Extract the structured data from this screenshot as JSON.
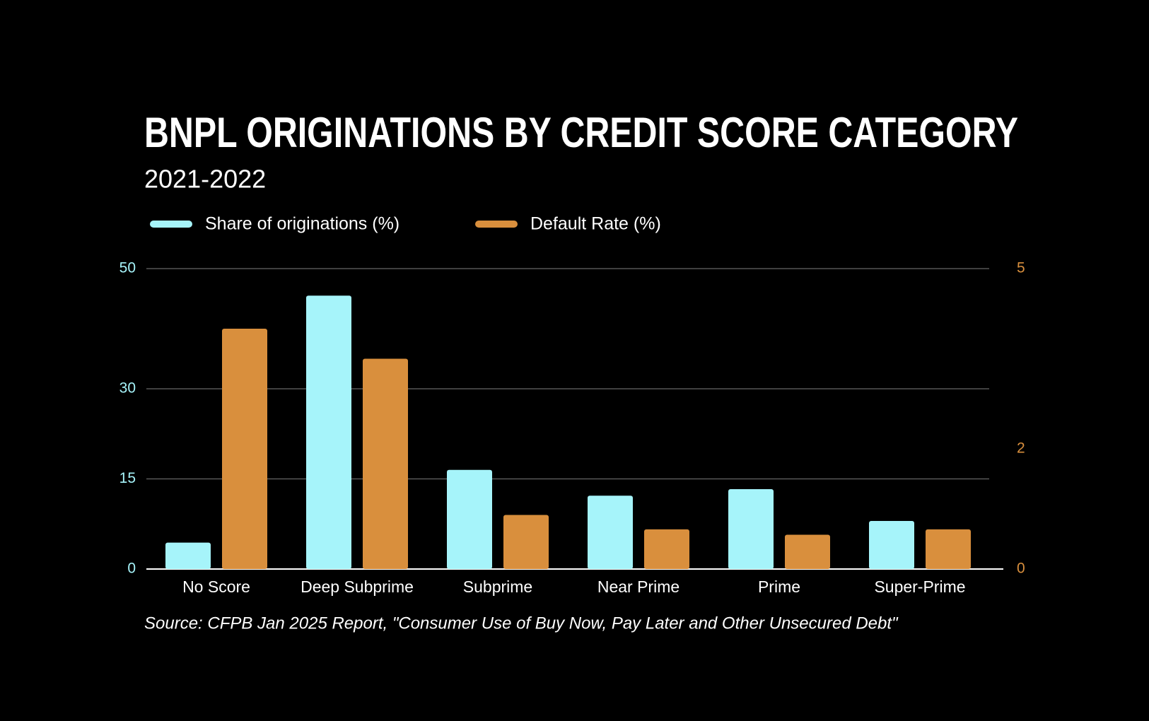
{
  "chart_data": {
    "type": "bar",
    "title": "BNPL ORIGINATIONS BY CREDIT SCORE CATEGORY",
    "subtitle": "2021-2022",
    "categories": [
      "No Score",
      "Deep Subprime",
      "Subprime",
      "Near Prime",
      "Prime",
      "Super-Prime"
    ],
    "series": [
      {
        "name": "Share of originations (%)",
        "color": "#a6f4fa",
        "values": [
          4.4,
          45.5,
          16.5,
          12.2,
          13.3,
          8.0
        ]
      },
      {
        "name": "Default Rate (%)",
        "color": "#d98f3d",
        "axis": "y2",
        "values": [
          4.0,
          3.5,
          0.9,
          0.66,
          0.57,
          0.66
        ]
      }
    ],
    "ylim": [
      0,
      50
    ],
    "yticks": [
      0,
      15,
      30,
      50
    ],
    "y2lim": [
      0,
      5
    ],
    "y2ticks": [
      0,
      2,
      5
    ],
    "grid": true,
    "legend": "top",
    "source": "Source: CFPB Jan 2025 Report, \"Consumer Use of Buy Now, Pay Later and Other Unsecured Debt\""
  }
}
